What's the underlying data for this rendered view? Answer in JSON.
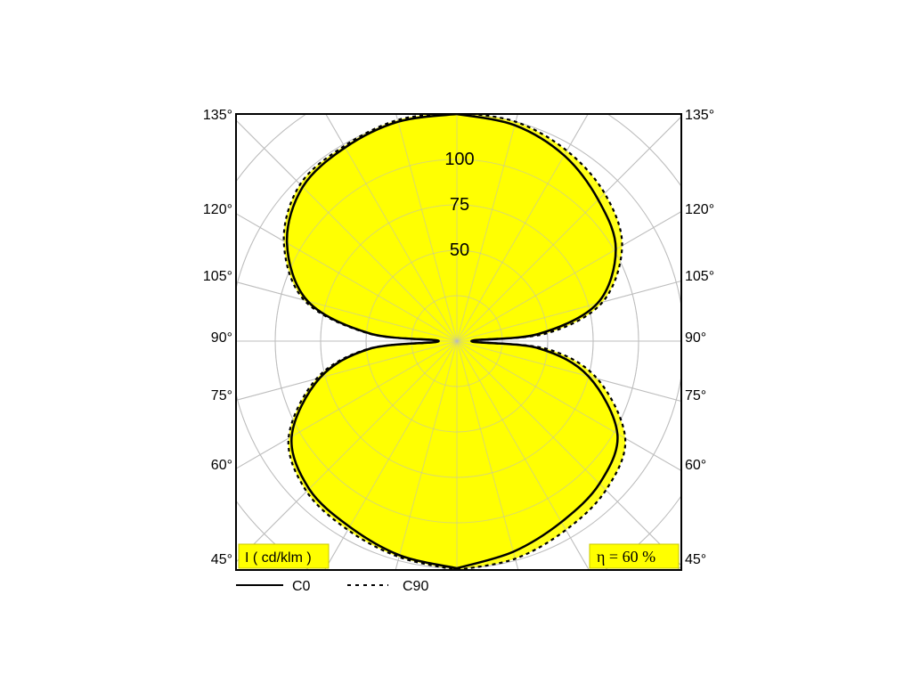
{
  "chart_data": {
    "type": "polar",
    "unit_label": "I ( cd/klm )",
    "efficiency_label": "η = 60 %",
    "angle_tick_labels_left": [
      "135°",
      "120°",
      "105°",
      "90°",
      "75°",
      "60°",
      "45°"
    ],
    "angle_tick_labels_right": [
      "135°",
      "120°",
      "105°",
      "90°",
      "75°",
      "60°",
      "45°"
    ],
    "radial_labels": [
      "100",
      "75",
      "50"
    ],
    "radial_range": [
      0,
      125
    ],
    "grid": true,
    "fill_color": "#ffff00",
    "legend_position": "bottom-left",
    "series": [
      {
        "name": "C0",
        "line_style": "solid",
        "angles_deg": [
          0,
          15,
          30,
          45,
          60,
          75,
          85,
          90,
          95,
          105,
          120,
          135,
          150,
          165,
          180
        ],
        "lower_left": [
          125,
          122,
          118,
          115,
          105,
          78,
          48,
          10,
          48,
          85,
          108,
          120,
          123,
          125,
          125
        ],
        "lower_right": [
          125,
          120,
          115,
          111,
          102,
          75,
          45,
          8,
          45,
          80,
          101,
          110,
          118,
          123,
          125
        ]
      },
      {
        "name": "C90",
        "line_style": "dashed",
        "angles_deg": [
          0,
          15,
          30,
          45,
          60,
          75,
          85,
          90,
          95,
          105,
          120,
          135,
          150,
          165,
          180
        ],
        "lower_left": [
          126,
          123,
          120,
          117,
          107,
          80,
          49,
          10,
          49,
          87,
          110,
          122,
          124,
          126,
          126
        ],
        "lower_right": [
          126,
          124,
          120,
          116,
          107,
          80,
          50,
          10,
          50,
          83,
          105,
          115,
          121,
          125,
          126
        ]
      }
    ]
  }
}
